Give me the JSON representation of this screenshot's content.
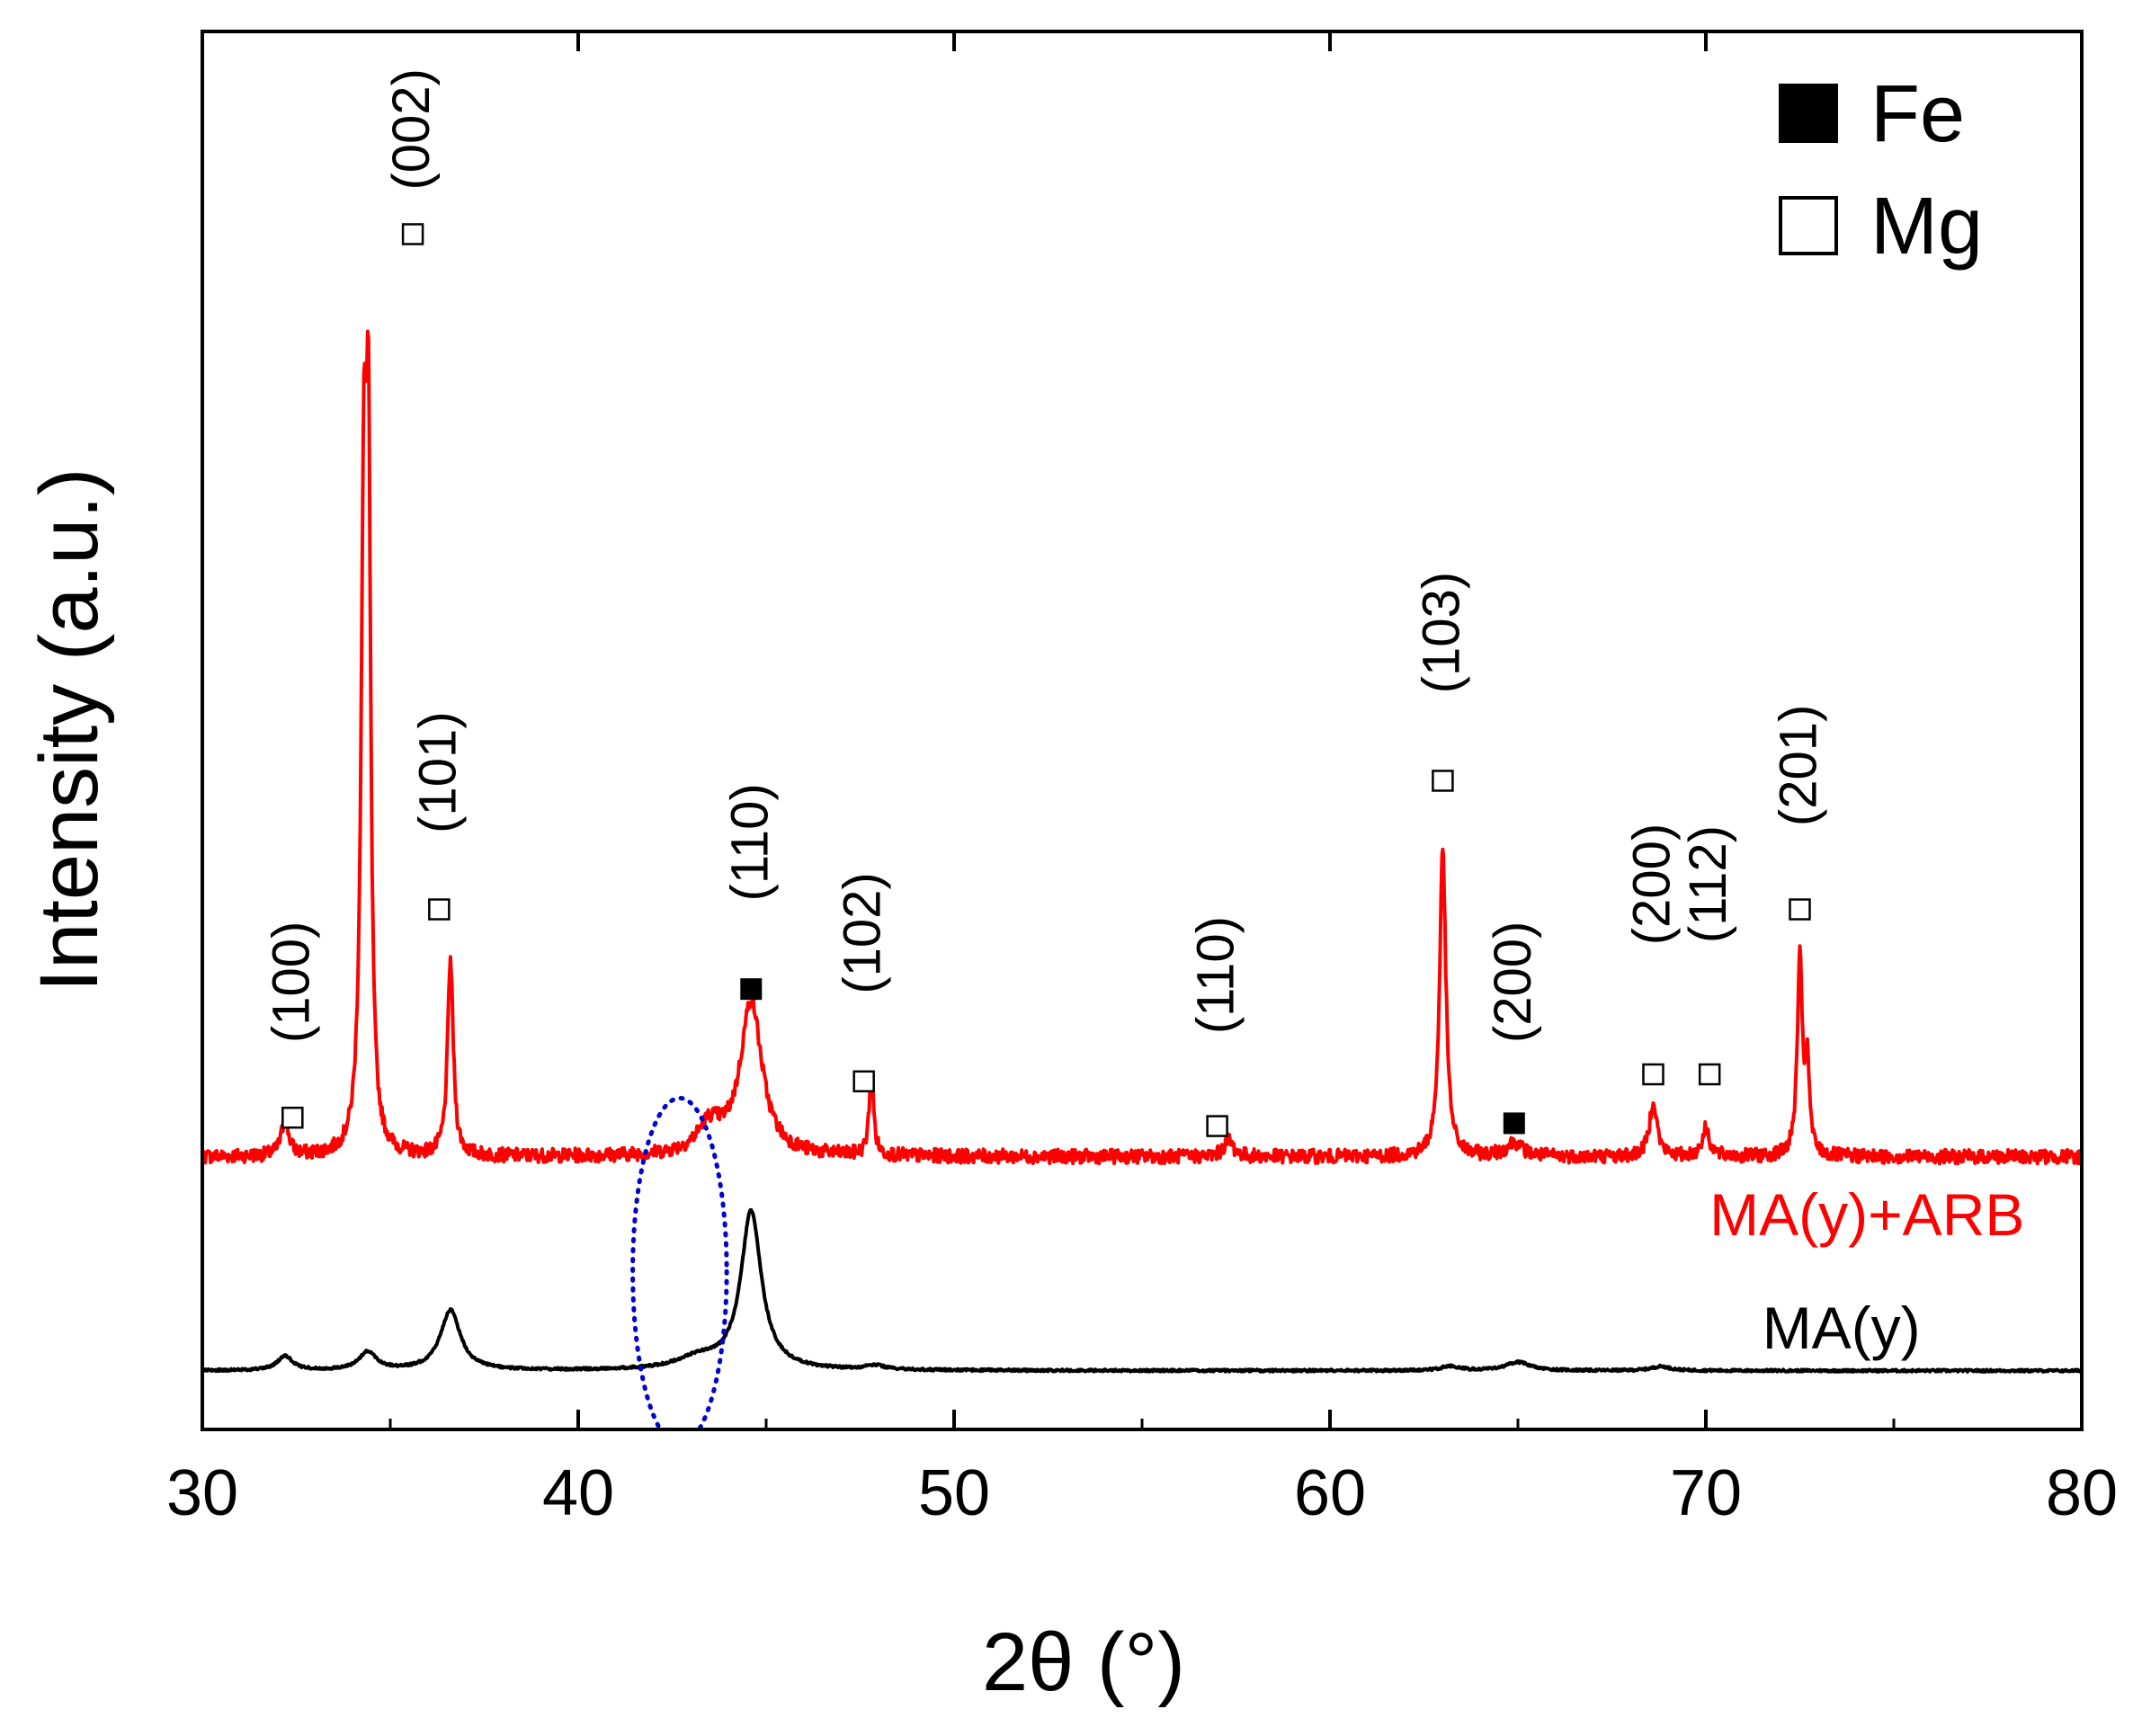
{
  "chart_data": {
    "type": "line",
    "title": "",
    "xlabel": "2θ (°)",
    "ylabel": "Intensity (a.u.)",
    "xlim": [
      30,
      80
    ],
    "ylim": [
      0,
      100
    ],
    "xticks": [
      30,
      40,
      50,
      60,
      70,
      80
    ],
    "legend": {
      "position": "top-right",
      "entries": [
        {
          "name": "Fe",
          "marker": "filled-square"
        },
        {
          "name": "Mg",
          "marker": "open-square"
        }
      ]
    },
    "series": [
      {
        "name": "MA(y)+ARB",
        "color": "#ff0000",
        "baseline": 19.5,
        "noise": 0.5,
        "peaks": [
          {
            "x": 32.2,
            "h": 2.5,
            "w": 0.12
          },
          {
            "x": 34.3,
            "h": 45.0,
            "w": 0.09
          },
          {
            "x": 34.42,
            "h": 42.0,
            "w": 0.07
          },
          {
            "x": 36.6,
            "h": 14.0,
            "w": 0.09
          },
          {
            "x": 43.5,
            "h": 2.0,
            "w": 0.4
          },
          {
            "x": 44.6,
            "h": 11.0,
            "w": 0.35
          },
          {
            "x": 47.8,
            "h": 6.0,
            "w": 0.07
          },
          {
            "x": 57.3,
            "h": 1.2,
            "w": 0.15
          },
          {
            "x": 63.0,
            "h": 22.0,
            "w": 0.1
          },
          {
            "x": 64.9,
            "h": 1.0,
            "w": 0.25
          },
          {
            "x": 68.6,
            "h": 4.0,
            "w": 0.12
          },
          {
            "x": 70.0,
            "h": 2.0,
            "w": 0.12
          },
          {
            "x": 72.5,
            "h": 14.0,
            "w": 0.08
          },
          {
            "x": 72.7,
            "h": 6.0,
            "w": 0.07
          }
        ]
      },
      {
        "name": "MA(y)",
        "color": "#000000",
        "baseline": 4.2,
        "noise": 0.08,
        "peaks": [
          {
            "x": 32.2,
            "h": 1.0,
            "w": 0.25
          },
          {
            "x": 34.4,
            "h": 1.3,
            "w": 0.28
          },
          {
            "x": 36.6,
            "h": 4.3,
            "w": 0.32
          },
          {
            "x": 43.2,
            "h": 0.8,
            "w": 0.7
          },
          {
            "x": 44.6,
            "h": 11.3,
            "w": 0.33
          },
          {
            "x": 47.9,
            "h": 0.3,
            "w": 0.3
          },
          {
            "x": 63.2,
            "h": 0.3,
            "w": 0.3
          },
          {
            "x": 65.0,
            "h": 0.6,
            "w": 0.4
          },
          {
            "x": 68.8,
            "h": 0.3,
            "w": 0.3
          }
        ]
      }
    ],
    "peak_annotations": [
      {
        "label": "(100)",
        "phase": "Mg",
        "x": 32.4,
        "marker_y": 22.3,
        "label_y": 32.0
      },
      {
        "label": "(002)",
        "phase": "Mg",
        "x": 35.6,
        "marker_y": 85.5,
        "label_y": 93.0
      },
      {
        "label": "(101)",
        "phase": "Mg",
        "x": 36.3,
        "marker_y": 37.2,
        "label_y": 47.0
      },
      {
        "label": "(110)",
        "phase": "Fe",
        "x": 44.6,
        "marker_y": 31.5,
        "label_y": 42.0
      },
      {
        "label": "(102)",
        "phase": "Mg",
        "x": 47.6,
        "marker_y": 24.9,
        "label_y": 35.5
      },
      {
        "label": "(110)",
        "phase": "Mg",
        "x": 57.0,
        "marker_y": 21.7,
        "label_y": 32.5
      },
      {
        "label": "(103)",
        "phase": "Mg",
        "x": 63.0,
        "marker_y": 46.4,
        "label_y": 57.0
      },
      {
        "label": "(200)",
        "phase": "Fe",
        "x": 64.9,
        "marker_y": 21.9,
        "label_y": 32.0
      },
      {
        "label": "(200)",
        "phase": "Mg",
        "x": 68.6,
        "marker_y": 25.4,
        "label_y": 39.0
      },
      {
        "label": "(112)",
        "phase": "Mg",
        "x": 70.1,
        "marker_y": 25.4,
        "label_y": 39.0
      },
      {
        "label": "(201)",
        "phase": "Mg",
        "x": 72.5,
        "marker_y": 37.2,
        "label_y": 47.5
      }
    ],
    "series_labels": [
      {
        "text": "MA(y)+ARB",
        "color": "#ff0000",
        "x": 70.1,
        "y": 13.9
      },
      {
        "text": "MA(y)",
        "color": "#000000",
        "x": 71.5,
        "y": 5.8
      }
    ],
    "highlight_ellipse": {
      "cx": 42.7,
      "cy": 11.3,
      "rx": 1.25,
      "ry": 12.4,
      "color": "#0000cc"
    }
  }
}
